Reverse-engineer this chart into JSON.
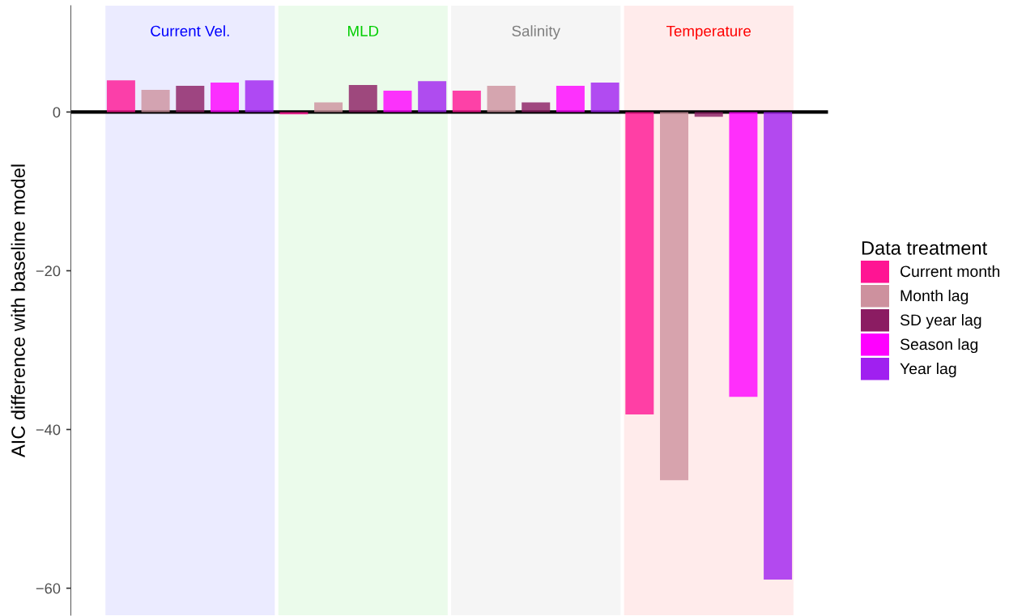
{
  "chart_data": {
    "type": "bar",
    "ylabel": "AIC difference with baseline model",
    "legend_title": "Data treatment",
    "categories": [
      "Current Vel.",
      "MLD",
      "Salinity",
      "Temperature"
    ],
    "series": [
      {
        "name": "Current month",
        "color": "#ff1493",
        "values": [
          4.0,
          -0.3,
          2.7,
          -38.1
        ]
      },
      {
        "name": "Month lag",
        "color": "#cd919e",
        "values": [
          2.8,
          1.2,
          3.3,
          -46.4
        ]
      },
      {
        "name": "SD year lag",
        "color": "#8b1c62",
        "values": [
          3.3,
          3.4,
          1.2,
          -0.6
        ]
      },
      {
        "name": "Season lag",
        "color": "#ff00ff",
        "values": [
          3.7,
          2.7,
          3.3,
          -35.9
        ]
      },
      {
        "name": "Year lag",
        "color": "#a020f0",
        "values": [
          4.0,
          3.9,
          3.7,
          -58.9
        ]
      }
    ],
    "ylim": [
      -63.4,
      13.4
    ],
    "yticks": [
      {
        "value": -60,
        "label": "−60"
      },
      {
        "value": -40,
        "label": "−40"
      },
      {
        "value": -20,
        "label": "−20"
      },
      0
    ],
    "bands": [
      {
        "axis": "x",
        "from": "Current Vel.",
        "to": "Current Vel.",
        "color": "#0000ff"
      },
      {
        "axis": "x",
        "from": "MLD",
        "to": "MLD",
        "color": "#00cd00"
      },
      {
        "axis": "x",
        "from": "Salinity",
        "to": "Salinity",
        "color": "#7f7f7f"
      },
      {
        "axis": "x",
        "from": "Temperature",
        "to": "Temperature",
        "color": "#ff0000"
      }
    ],
    "ref_lines": [
      {
        "axis": "y",
        "value": 0,
        "color": "#000000"
      }
    ],
    "legend": "right"
  }
}
